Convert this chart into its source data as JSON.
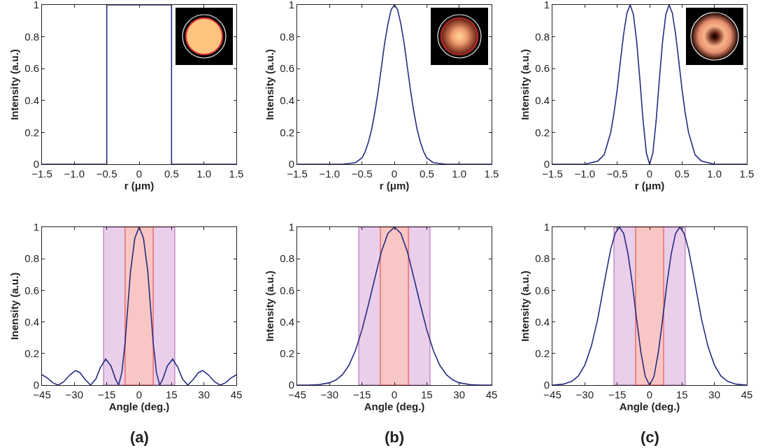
{
  "chart_data": [
    {
      "type": "line",
      "xlabel": "r (μm)",
      "ylabel": "Intensity (a.u.)",
      "xlim": [
        -1.5,
        1.5
      ],
      "xticks": [
        {
          "value": -1.5,
          "label": "−1.5"
        },
        {
          "value": -1,
          "label": "−1.0"
        },
        {
          "value": -0.5,
          "label": "−0.5"
        },
        0,
        {
          "value": 0.5,
          "label": "0.5"
        },
        {
          "value": 1,
          "label": "1.0"
        },
        {
          "value": 1.5,
          "label": "1.5"
        }
      ],
      "ylim": [
        0,
        1
      ],
      "yticks": [
        0,
        0.2,
        0.4,
        0.6,
        0.8,
        1
      ],
      "series": [
        {
          "color": "#262b82",
          "x": [
            -1.5,
            -0.5,
            -0.5,
            0.5,
            0.5,
            1.5
          ],
          "values": [
            0,
            0,
            1,
            1,
            0,
            0
          ]
        }
      ]
    },
    {
      "type": "line",
      "xlabel": "r (μm)",
      "ylabel": "Intensity (a.u.)",
      "xlim": [
        -1.5,
        1.5
      ],
      "xticks": [
        {
          "value": -1.5,
          "label": "−1.5"
        },
        {
          "value": -1,
          "label": "−1.0"
        },
        {
          "value": -0.5,
          "label": "−0.5"
        },
        0,
        {
          "value": 0.5,
          "label": "0.5"
        },
        {
          "value": 1,
          "label": "1.0"
        },
        {
          "value": 1.5,
          "label": "1.5"
        }
      ],
      "ylim": [
        0,
        1
      ],
      "yticks": [
        0,
        0.2,
        0.4,
        0.6,
        0.8,
        1
      ],
      "series": [
        {
          "color": "#262b82",
          "x": [
            -1.5,
            -1,
            -0.8,
            -0.6,
            -0.5,
            -0.45,
            -0.4,
            -0.35,
            -0.3,
            -0.25,
            -0.2,
            -0.15,
            -0.1,
            -0.05,
            0,
            0.05,
            0.1,
            0.15,
            0.2,
            0.25,
            0.3,
            0.35,
            0.4,
            0.45,
            0.5,
            0.6,
            0.8,
            1,
            1.5
          ],
          "values": [
            0,
            0,
            0,
            0.01,
            0.04,
            0.08,
            0.14,
            0.22,
            0.33,
            0.46,
            0.61,
            0.76,
            0.88,
            0.97,
            1,
            0.97,
            0.88,
            0.76,
            0.61,
            0.46,
            0.33,
            0.22,
            0.14,
            0.08,
            0.04,
            0.01,
            0,
            0,
            0
          ]
        }
      ]
    },
    {
      "type": "line",
      "xlabel": "r (μm)",
      "ylabel": "Intensity (a.u.)",
      "xlim": [
        -1.5,
        1.5
      ],
      "xticks": [
        {
          "value": -1.5,
          "label": "−1.5"
        },
        {
          "value": -1,
          "label": "−1.0"
        },
        {
          "value": -0.5,
          "label": "−0.5"
        },
        0,
        {
          "value": 0.5,
          "label": "0.5"
        },
        {
          "value": 1,
          "label": "1.0"
        },
        {
          "value": 1.5,
          "label": "1.5"
        }
      ],
      "ylim": [
        0,
        1
      ],
      "yticks": [
        0,
        0.2,
        0.4,
        0.6,
        0.8,
        1
      ],
      "series": [
        {
          "color": "#262b82",
          "x": [
            -1.5,
            -1,
            -0.8,
            -0.7,
            -0.6,
            -0.55,
            -0.5,
            -0.45,
            -0.4,
            -0.35,
            -0.3,
            -0.25,
            -0.2,
            -0.15,
            -0.1,
            -0.05,
            0,
            0.05,
            0.1,
            0.15,
            0.2,
            0.25,
            0.3,
            0.35,
            0.4,
            0.45,
            0.5,
            0.55,
            0.6,
            0.7,
            0.8,
            1,
            1.5
          ],
          "values": [
            0,
            0,
            0.02,
            0.06,
            0.2,
            0.32,
            0.47,
            0.65,
            0.82,
            0.95,
            1,
            0.94,
            0.77,
            0.53,
            0.27,
            0.07,
            0,
            0.07,
            0.27,
            0.53,
            0.77,
            0.94,
            1,
            0.95,
            0.82,
            0.65,
            0.47,
            0.32,
            0.2,
            0.06,
            0.02,
            0,
            0
          ]
        }
      ]
    },
    {
      "type": "line",
      "xlabel": "Angle (deg.)",
      "ylabel": "Inensity (a.u.)",
      "annotations": [
        "(a)"
      ],
      "xlim": [
        -45,
        45
      ],
      "xticks": [
        {
          "value": -45,
          "label": "−45"
        },
        {
          "value": -30,
          "label": "−30"
        },
        {
          "value": -15,
          "label": "−15"
        },
        0,
        15,
        30,
        45
      ],
      "ylim": [
        0,
        1
      ],
      "yticks": [
        0,
        0.2,
        0.4,
        0.6,
        0.8,
        1
      ],
      "bands": [
        {
          "axis": "x",
          "from": -16.5,
          "to": 16.5,
          "color": "#b45fb4"
        },
        {
          "axis": "x",
          "from": -6.5,
          "to": 6.5,
          "color": "#e8413a"
        }
      ],
      "series": [
        {
          "color": "#262b82",
          "x": [
            -45,
            -42.5,
            -40,
            -37.5,
            -35,
            -32,
            -29.5,
            -27.5,
            -25,
            -22.5,
            -20,
            -18,
            -15.5,
            -13,
            -11,
            -9.5,
            -8,
            -6.5,
            -5.5,
            -4,
            -2,
            0,
            2,
            4,
            5.5,
            6.5,
            8,
            9.5,
            11,
            13,
            15.5,
            18,
            20,
            22.5,
            25,
            27.5,
            29.5,
            32,
            35,
            37.5,
            40,
            42.5,
            45
          ],
          "values": [
            0.065,
            0.045,
            0.015,
            0,
            0.02,
            0.065,
            0.092,
            0.08,
            0.035,
            0,
            0.04,
            0.11,
            0.165,
            0.12,
            0.04,
            0,
            0.08,
            0.27,
            0.45,
            0.72,
            0.93,
            1,
            0.93,
            0.72,
            0.45,
            0.27,
            0.08,
            0,
            0.04,
            0.12,
            0.165,
            0.11,
            0.04,
            0,
            0.035,
            0.08,
            0.092,
            0.065,
            0.02,
            0,
            0.015,
            0.045,
            0.065
          ]
        }
      ]
    },
    {
      "type": "line",
      "xlabel": "Angle (deg.)",
      "ylabel": "Intensity (a.u.)",
      "annotations": [
        "(b)"
      ],
      "xlim": [
        -45,
        45
      ],
      "xticks": [
        {
          "value": -45,
          "label": "−45"
        },
        {
          "value": -30,
          "label": "−30"
        },
        {
          "value": -15,
          "label": "−15"
        },
        0,
        15,
        30,
        45
      ],
      "ylim": [
        0,
        1
      ],
      "yticks": [
        0,
        0.2,
        0.4,
        0.6,
        0.8,
        1
      ],
      "bands": [
        {
          "axis": "x",
          "from": -16.5,
          "to": 16.5,
          "color": "#b45fb4"
        },
        {
          "axis": "x",
          "from": -6.5,
          "to": 6.5,
          "color": "#e8413a"
        }
      ],
      "series": [
        {
          "color": "#262b82",
          "x": [
            -45,
            -40,
            -35,
            -30,
            -27,
            -24,
            -21,
            -18,
            -15,
            -12,
            -9,
            -6,
            -3,
            0,
            3,
            6,
            9,
            12,
            15,
            18,
            21,
            24,
            27,
            30,
            35,
            40,
            45
          ],
          "values": [
            0,
            0,
            0.003,
            0.015,
            0.033,
            0.067,
            0.126,
            0.22,
            0.35,
            0.51,
            0.68,
            0.845,
            0.96,
            1,
            0.96,
            0.845,
            0.68,
            0.51,
            0.35,
            0.22,
            0.126,
            0.067,
            0.033,
            0.015,
            0.003,
            0,
            0
          ]
        }
      ]
    },
    {
      "type": "line",
      "xlabel": "Angle (deg.)",
      "ylabel": "Intensity (a.u.)",
      "annotations": [
        "(c)"
      ],
      "xlim": [
        -45,
        45
      ],
      "xticks": [
        {
          "value": -45,
          "label": "−45"
        },
        {
          "value": -30,
          "label": "−30"
        },
        {
          "value": -15,
          "label": "−15"
        },
        0,
        15,
        30,
        45
      ],
      "ylim": [
        0,
        1
      ],
      "yticks": [
        0,
        0.2,
        0.4,
        0.6,
        0.8,
        1
      ],
      "bands": [
        {
          "axis": "x",
          "from": -16.5,
          "to": 16.5,
          "color": "#b45fb4"
        },
        {
          "axis": "x",
          "from": -6.5,
          "to": 6.5,
          "color": "#e8413a"
        }
      ],
      "series": [
        {
          "color": "#262b82",
          "x": [
            -45,
            -40,
            -36,
            -33,
            -30,
            -27,
            -24,
            -22,
            -20,
            -18,
            -16,
            -14,
            -12,
            -10,
            -8,
            -6,
            -4,
            -2,
            0,
            2,
            4,
            6,
            8,
            10,
            12,
            14,
            16,
            18,
            20,
            22,
            24,
            27,
            30,
            33,
            36,
            40,
            45
          ],
          "values": [
            0,
            0.006,
            0.024,
            0.058,
            0.127,
            0.245,
            0.42,
            0.57,
            0.72,
            0.86,
            0.96,
            1,
            0.96,
            0.83,
            0.64,
            0.415,
            0.204,
            0.054,
            0,
            0.054,
            0.204,
            0.415,
            0.64,
            0.83,
            0.96,
            1,
            0.96,
            0.86,
            0.72,
            0.57,
            0.42,
            0.245,
            0.127,
            0.058,
            0.024,
            0.006,
            0
          ]
        }
      ]
    }
  ]
}
